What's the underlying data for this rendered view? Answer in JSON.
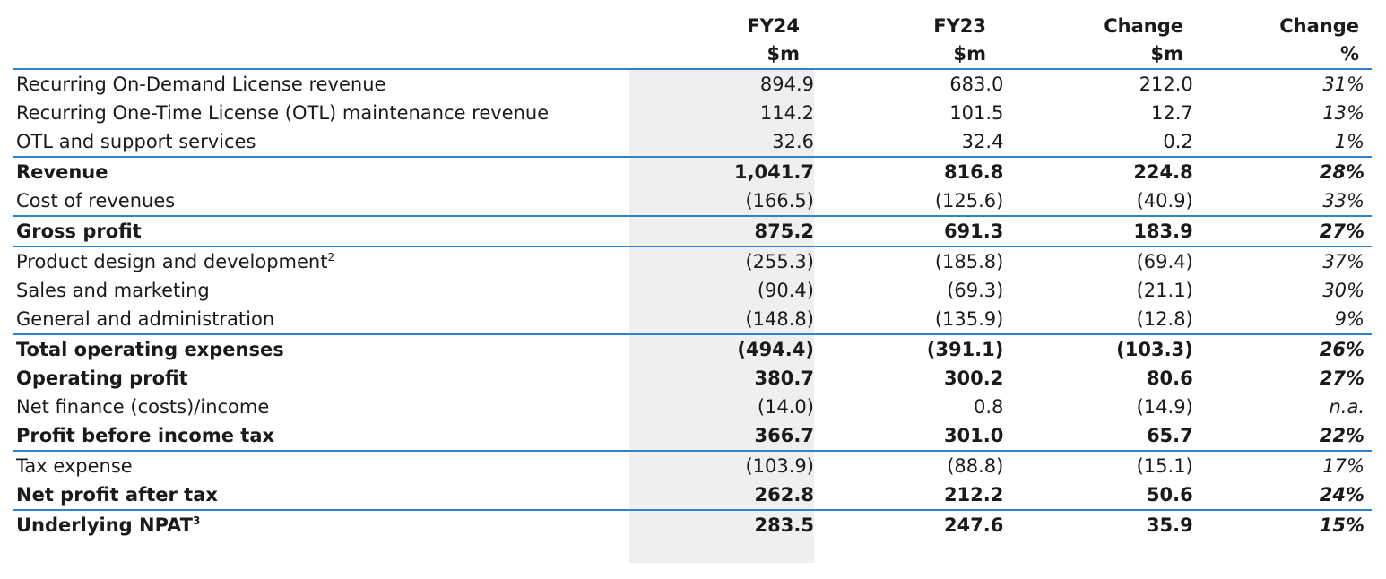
{
  "headers": {
    "fy24": {
      "line1": "FY24",
      "line2": "$m"
    },
    "fy23": {
      "line1": "FY23",
      "line2": "$m"
    },
    "change": {
      "line1": "Change",
      "line2": "$m"
    },
    "change_pct": {
      "line1": "Change",
      "line2": "%"
    }
  },
  "rows": [
    {
      "label": "Recurring On-Demand License revenue",
      "sup": "",
      "fy24": "894.9",
      "fy23": "683.0",
      "change": "212.0",
      "pct": "31%"
    },
    {
      "label": "Recurring One-Time License (OTL) maintenance revenue",
      "sup": "",
      "fy24": "114.2",
      "fy23": "101.5",
      "change": "12.7",
      "pct": "13%"
    },
    {
      "label": "OTL and support services",
      "sup": "",
      "fy24": "32.6",
      "fy23": "32.4",
      "change": "0.2",
      "pct": "1%"
    },
    {
      "label": "Revenue",
      "sup": "",
      "fy24": "1,041.7",
      "fy23": "816.8",
      "change": "224.8",
      "pct": "28%"
    },
    {
      "label": "Cost of revenues",
      "sup": "",
      "fy24": "(166.5)",
      "fy23": "(125.6)",
      "change": "(40.9)",
      "pct": "33%"
    },
    {
      "label": "Gross profit",
      "sup": "",
      "fy24": "875.2",
      "fy23": "691.3",
      "change": "183.9",
      "pct": "27%"
    },
    {
      "label": "Product design and development",
      "sup": "2",
      "fy24": "(255.3)",
      "fy23": "(185.8)",
      "change": "(69.4)",
      "pct": "37%"
    },
    {
      "label": "Sales and marketing",
      "sup": "",
      "fy24": "(90.4)",
      "fy23": "(69.3)",
      "change": "(21.1)",
      "pct": "30%"
    },
    {
      "label": "General and administration",
      "sup": "",
      "fy24": "(148.8)",
      "fy23": "(135.9)",
      "change": "(12.8)",
      "pct": "9%"
    },
    {
      "label": "Total operating expenses",
      "sup": "",
      "fy24": "(494.4)",
      "fy23": "(391.1)",
      "change": "(103.3)",
      "pct": "26%"
    },
    {
      "label": "Operating profit",
      "sup": "",
      "fy24": "380.7",
      "fy23": "300.2",
      "change": "80.6",
      "pct": "27%"
    },
    {
      "label": "Net finance (costs)/income",
      "sup": "",
      "fy24": "(14.0)",
      "fy23": "0.8",
      "change": "(14.9)",
      "pct": "n.a."
    },
    {
      "label": "Profit before income tax",
      "sup": "",
      "fy24": "366.7",
      "fy23": "301.0",
      "change": "65.7",
      "pct": "22%"
    },
    {
      "label": "Tax expense",
      "sup": "",
      "fy24": "(103.9)",
      "fy23": "(88.8)",
      "change": "(15.1)",
      "pct": "17%"
    },
    {
      "label": "Net profit after tax",
      "sup": "",
      "fy24": "262.8",
      "fy23": "212.2",
      "change": "50.6",
      "pct": "24%"
    },
    {
      "label": "Underlying NPAT",
      "sup": "3",
      "fy24": "283.5",
      "fy23": "247.6",
      "change": "35.9",
      "pct": "15%"
    }
  ],
  "colors": {
    "rule": "#2f84c9",
    "shade": "#efefef"
  }
}
